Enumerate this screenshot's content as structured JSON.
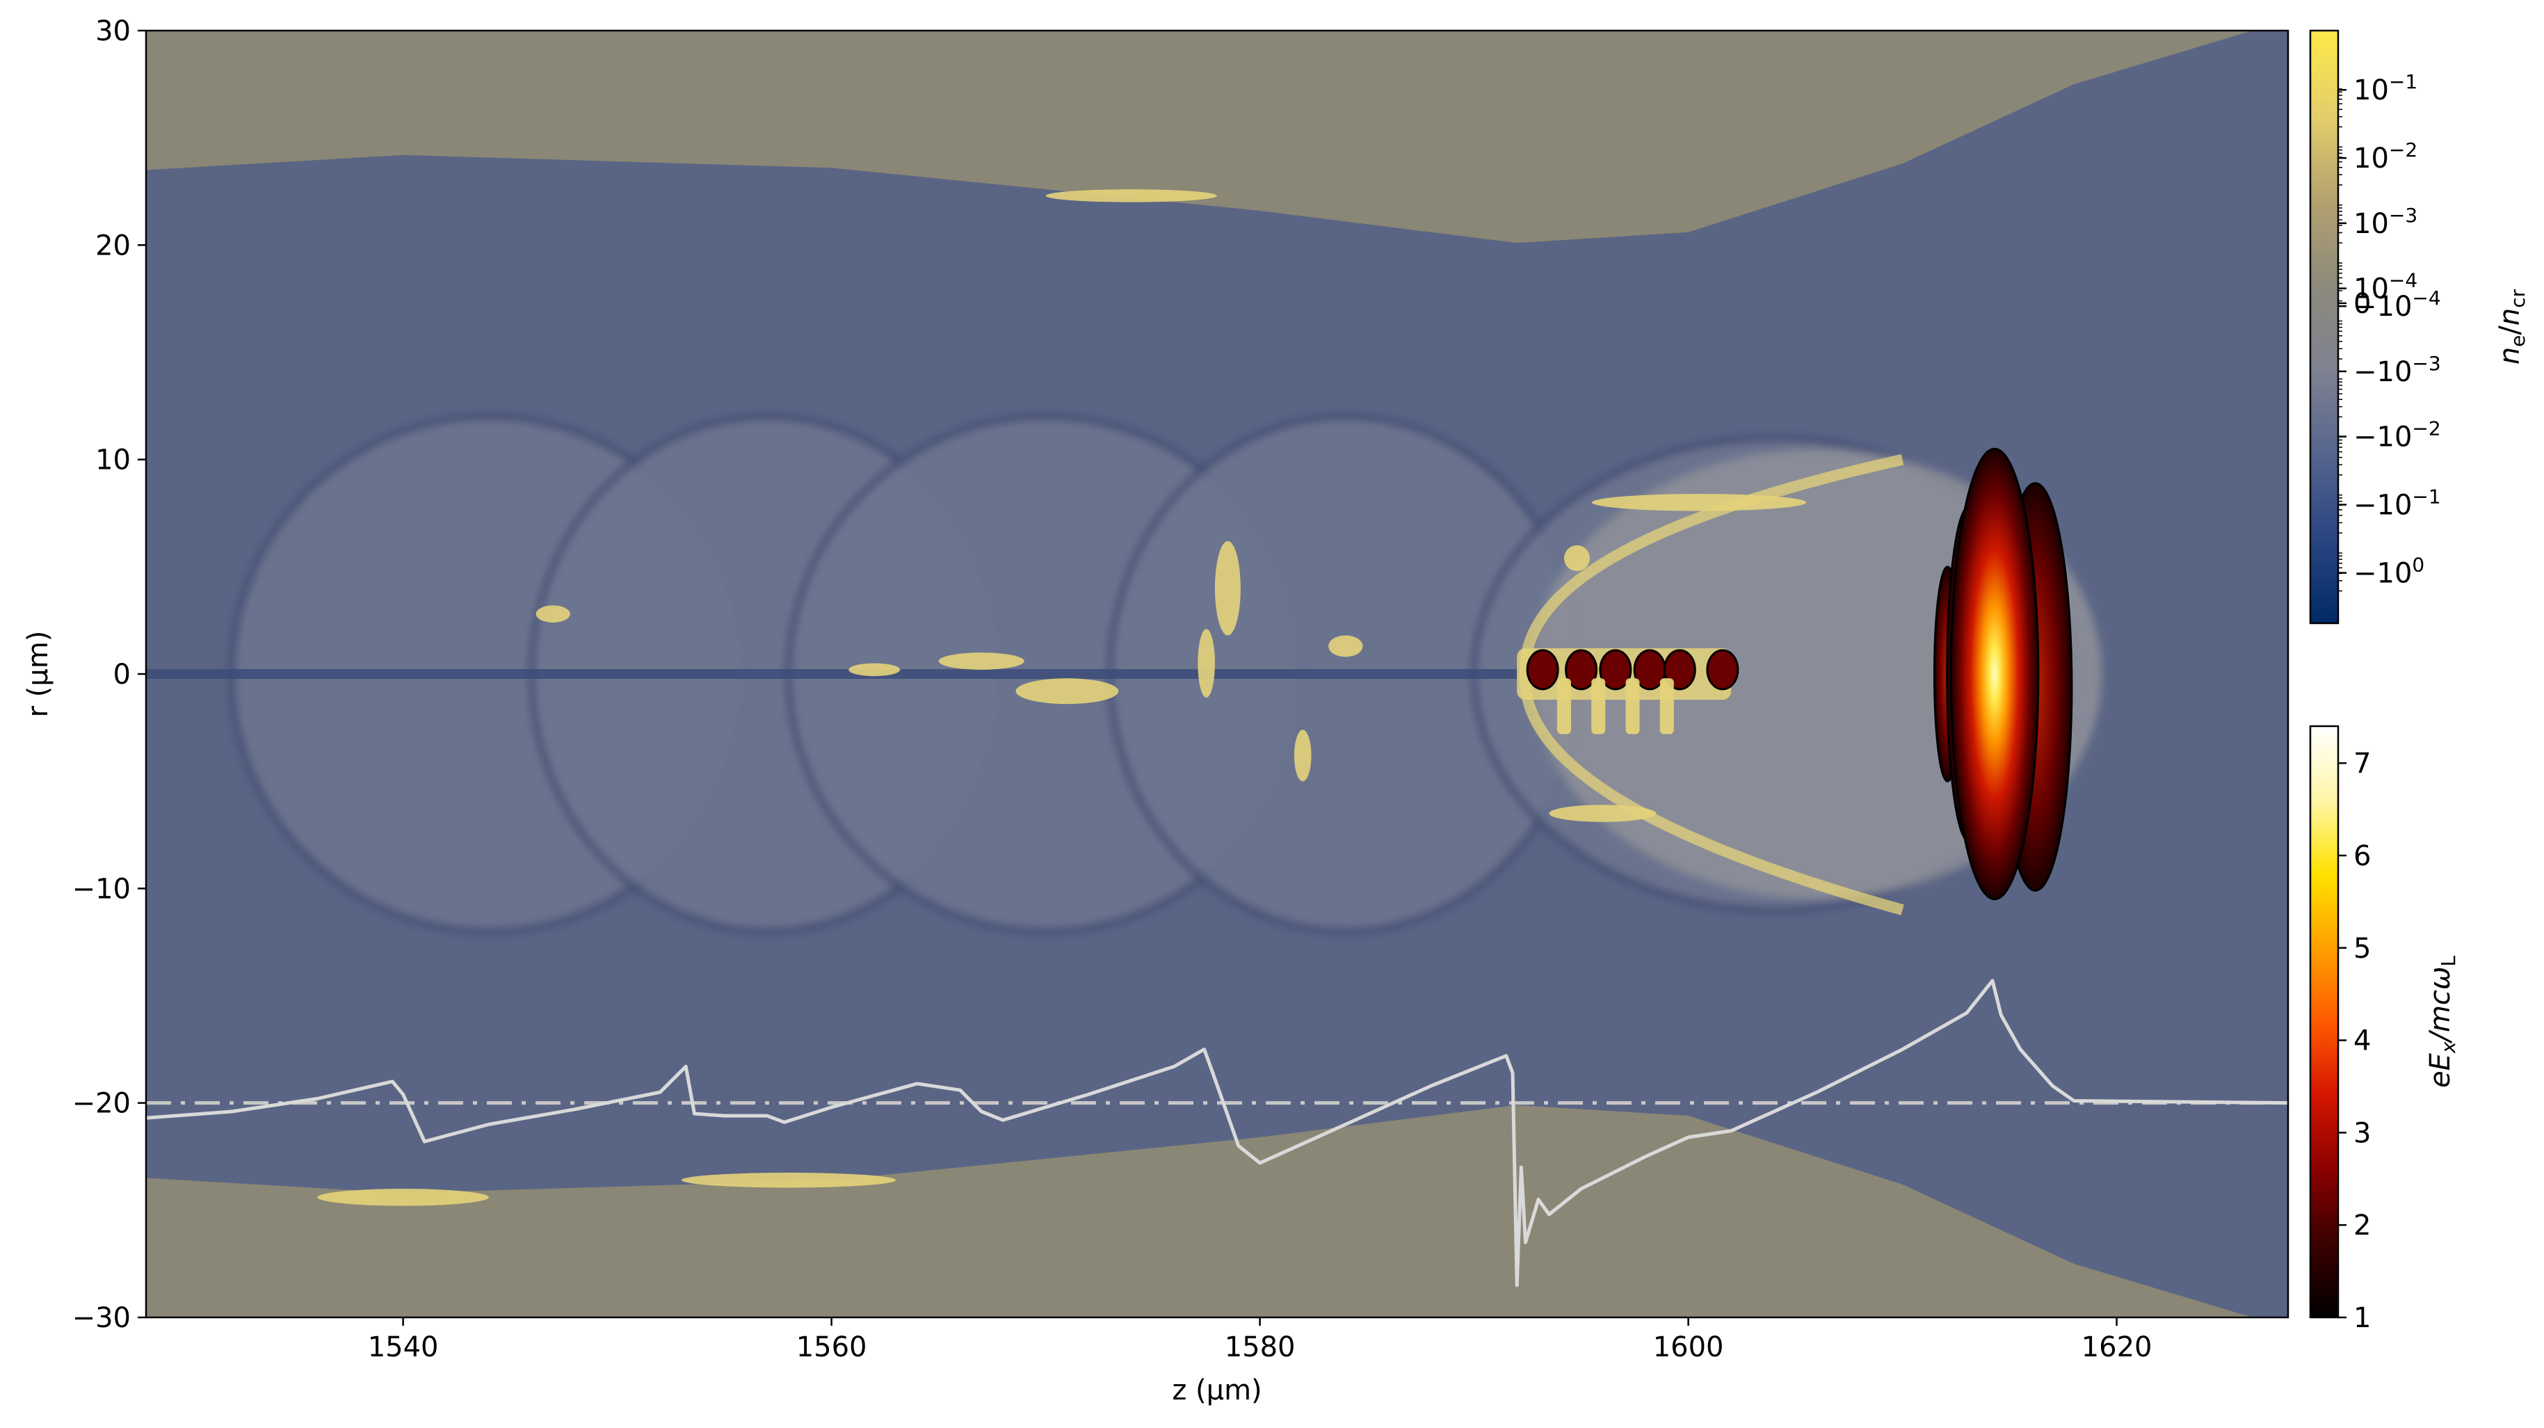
{
  "chart_data": {
    "type": "heatmap",
    "main_panel": {
      "xlabel": "z (μm)",
      "ylabel": "r (μm)",
      "xlim": [
        1528,
        1628
      ],
      "ylim": [
        -30,
        30
      ],
      "xticks": [
        {
          "value": 1540,
          "label": "1540"
        },
        {
          "value": 1560,
          "label": "1560"
        },
        {
          "value": 1580,
          "label": "1580"
        },
        {
          "value": 1600,
          "label": "1600"
        },
        {
          "value": 1620,
          "label": "1620"
        }
      ],
      "yticks": [
        {
          "value": -30,
          "label": "−30"
        },
        {
          "value": -20,
          "label": "−20"
        },
        {
          "value": -10,
          "label": "−10"
        },
        {
          "value": 0,
          "label": "0"
        },
        {
          "value": 10,
          "label": "10"
        },
        {
          "value": 20,
          "label": "20"
        },
        {
          "value": 30,
          "label": "30"
        }
      ],
      "background_colors": {
        "density_neutral": "#8a8776",
        "electron_sheath": "#5a6585",
        "bubble_interior": "#6d7690",
        "dense_yellow": "#e4d37a"
      },
      "bubbles": [
        {
          "center_z": 1544,
          "radius_z": 12,
          "radius_r": 12
        },
        {
          "center_z": 1557,
          "radius_z": 11,
          "radius_r": 12
        },
        {
          "center_z": 1570,
          "radius_z": 12,
          "radius_r": 12
        },
        {
          "center_z": 1584,
          "radius_z": 11,
          "radius_r": 12
        },
        {
          "center_z": 1604,
          "radius_z": 14,
          "radius_r": 11
        }
      ],
      "laser_pulse": {
        "center_z": 1614.3,
        "center_r": 0,
        "half_length_z": 3.4,
        "half_width_r": 10,
        "peak_value": 7.3
      },
      "trapped_bunch": {
        "z_start": 1592,
        "z_end": 1602,
        "r_half_width": 1.2
      },
      "reference_line": {
        "r": -20,
        "style": "dash-dot",
        "color": "#c8c8c8"
      },
      "field_lineout": {
        "color": "#d9d9d9",
        "z": [
          1528,
          1532,
          1536,
          1539.5,
          1540,
          1541,
          1544,
          1548,
          1552,
          1553.2,
          1553.6,
          1555,
          1557,
          1557.8,
          1560,
          1564,
          1566,
          1567,
          1568,
          1572,
          1576,
          1577.4,
          1577.8,
          1579,
          1580,
          1584,
          1588,
          1591.5,
          1591.8,
          1592,
          1592.2,
          1592.4,
          1593,
          1593.5,
          1595,
          1598,
          1600,
          1602,
          1606,
          1610,
          1613,
          1614.2,
          1614.6,
          1615.5,
          1617,
          1618,
          1628
        ],
        "r": [
          -20.7,
          -20.4,
          -19.8,
          -19.0,
          -19.6,
          -21.8,
          -21.0,
          -20.3,
          -19.5,
          -18.3,
          -20.5,
          -20.6,
          -20.6,
          -20.9,
          -20.2,
          -19.1,
          -19.4,
          -20.4,
          -20.8,
          -19.6,
          -18.3,
          -17.5,
          -18.6,
          -22.0,
          -22.8,
          -21.0,
          -19.2,
          -17.8,
          -18.6,
          -28.5,
          -23.0,
          -26.5,
          -24.5,
          -25.2,
          -24.0,
          -22.5,
          -21.6,
          -21.3,
          -19.5,
          -17.5,
          -15.8,
          -14.3,
          -15.9,
          -17.5,
          -19.2,
          -19.9,
          -20.0
        ]
      }
    },
    "colorbar_density": {
      "label": "n_e/n_cr",
      "label_main": "n",
      "label_sub_main": "e",
      "label_sep": "/",
      "label_den": "n",
      "label_sub_den": "cr",
      "scale": "symlog",
      "stops": [
        "#002a66",
        "#2a4582",
        "#56658e",
        "#7f8291",
        "#8d8a7c",
        "#b4a26e",
        "#e4ce6b",
        "#ffe94a"
      ],
      "ticks": [
        {
          "base": "10",
          "exp": "−1",
          "pos": 0.1
        },
        {
          "base": "10",
          "exp": "−2",
          "pos": 0.215
        },
        {
          "base": "10",
          "exp": "−3",
          "pos": 0.325
        },
        {
          "base": "10",
          "exp": "−4",
          "pos": 0.435
        },
        {
          "base": "0",
          "exp": "",
          "pos": 0.46
        },
        {
          "base": "−10",
          "exp": "−4",
          "pos": 0.465
        },
        {
          "base": "−10",
          "exp": "−3",
          "pos": 0.575
        },
        {
          "base": "−10",
          "exp": "−2",
          "pos": 0.685
        },
        {
          "base": "−10",
          "exp": "−1",
          "pos": 0.8
        },
        {
          "base": "−10",
          "exp": "0",
          "pos": 0.915
        }
      ]
    },
    "colorbar_field": {
      "label": "eE_x/mcω_L",
      "label_parts": {
        "a": "eE",
        "a_sub": "x",
        "b": "/mcω",
        "b_sub": "L"
      },
      "range": [
        1,
        7.4
      ],
      "stops": [
        "#000000",
        "#3a0000",
        "#8a0000",
        "#d41500",
        "#ff5a00",
        "#ffa000",
        "#ffe100",
        "#fff6a8",
        "#ffffff"
      ],
      "ticks": [
        {
          "value": 1,
          "label": "1"
        },
        {
          "value": 2,
          "label": "2"
        },
        {
          "value": 3,
          "label": "3"
        },
        {
          "value": 4,
          "label": "4"
        },
        {
          "value": 5,
          "label": "5"
        },
        {
          "value": 6,
          "label": "6"
        },
        {
          "value": 7,
          "label": "7"
        }
      ]
    }
  }
}
